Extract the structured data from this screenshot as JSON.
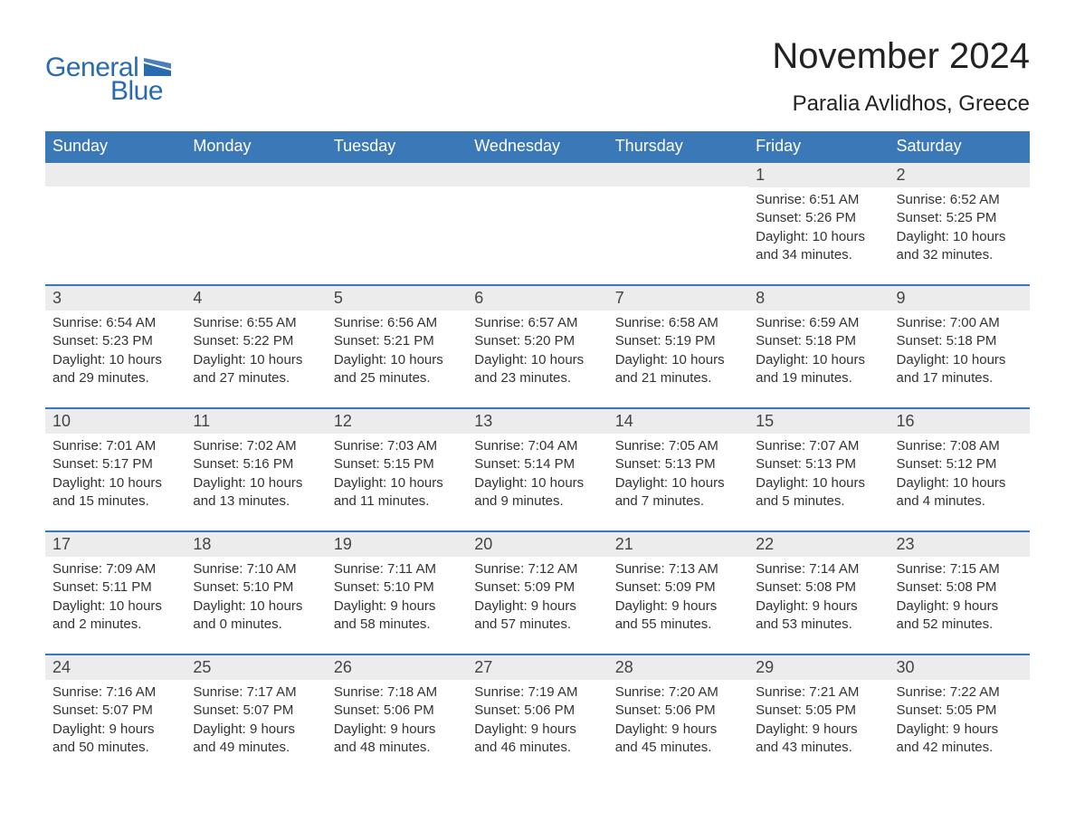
{
  "brand": {
    "word1": "General",
    "word2": "Blue",
    "color": "#2a6ab0",
    "flag_color": "#2a6ab0"
  },
  "title": {
    "month_year": "November 2024",
    "location": "Paralia Avlidhos, Greece"
  },
  "theme": {
    "header_bg": "#3b78b8",
    "header_fg": "#ffffff",
    "band_bg": "#ececec",
    "border_color": "#3b78b8",
    "text_color": "#333333",
    "page_bg": "#ffffff",
    "title_fontsize": 40,
    "location_fontsize": 24,
    "header_fontsize": 18,
    "daynum_fontsize": 18,
    "content_fontsize": 15
  },
  "calendar": {
    "day_headers": [
      "Sunday",
      "Monday",
      "Tuesday",
      "Wednesday",
      "Thursday",
      "Friday",
      "Saturday"
    ],
    "weeks": [
      [
        null,
        null,
        null,
        null,
        null,
        {
          "n": "1",
          "sunrise": "Sunrise: 6:51 AM",
          "sunset": "Sunset: 5:26 PM",
          "dl1": "Daylight: 10 hours",
          "dl2": "and 34 minutes."
        },
        {
          "n": "2",
          "sunrise": "Sunrise: 6:52 AM",
          "sunset": "Sunset: 5:25 PM",
          "dl1": "Daylight: 10 hours",
          "dl2": "and 32 minutes."
        }
      ],
      [
        {
          "n": "3",
          "sunrise": "Sunrise: 6:54 AM",
          "sunset": "Sunset: 5:23 PM",
          "dl1": "Daylight: 10 hours",
          "dl2": "and 29 minutes."
        },
        {
          "n": "4",
          "sunrise": "Sunrise: 6:55 AM",
          "sunset": "Sunset: 5:22 PM",
          "dl1": "Daylight: 10 hours",
          "dl2": "and 27 minutes."
        },
        {
          "n": "5",
          "sunrise": "Sunrise: 6:56 AM",
          "sunset": "Sunset: 5:21 PM",
          "dl1": "Daylight: 10 hours",
          "dl2": "and 25 minutes."
        },
        {
          "n": "6",
          "sunrise": "Sunrise: 6:57 AM",
          "sunset": "Sunset: 5:20 PM",
          "dl1": "Daylight: 10 hours",
          "dl2": "and 23 minutes."
        },
        {
          "n": "7",
          "sunrise": "Sunrise: 6:58 AM",
          "sunset": "Sunset: 5:19 PM",
          "dl1": "Daylight: 10 hours",
          "dl2": "and 21 minutes."
        },
        {
          "n": "8",
          "sunrise": "Sunrise: 6:59 AM",
          "sunset": "Sunset: 5:18 PM",
          "dl1": "Daylight: 10 hours",
          "dl2": "and 19 minutes."
        },
        {
          "n": "9",
          "sunrise": "Sunrise: 7:00 AM",
          "sunset": "Sunset: 5:18 PM",
          "dl1": "Daylight: 10 hours",
          "dl2": "and 17 minutes."
        }
      ],
      [
        {
          "n": "10",
          "sunrise": "Sunrise: 7:01 AM",
          "sunset": "Sunset: 5:17 PM",
          "dl1": "Daylight: 10 hours",
          "dl2": "and 15 minutes."
        },
        {
          "n": "11",
          "sunrise": "Sunrise: 7:02 AM",
          "sunset": "Sunset: 5:16 PM",
          "dl1": "Daylight: 10 hours",
          "dl2": "and 13 minutes."
        },
        {
          "n": "12",
          "sunrise": "Sunrise: 7:03 AM",
          "sunset": "Sunset: 5:15 PM",
          "dl1": "Daylight: 10 hours",
          "dl2": "and 11 minutes."
        },
        {
          "n": "13",
          "sunrise": "Sunrise: 7:04 AM",
          "sunset": "Sunset: 5:14 PM",
          "dl1": "Daylight: 10 hours",
          "dl2": "and 9 minutes."
        },
        {
          "n": "14",
          "sunrise": "Sunrise: 7:05 AM",
          "sunset": "Sunset: 5:13 PM",
          "dl1": "Daylight: 10 hours",
          "dl2": "and 7 minutes."
        },
        {
          "n": "15",
          "sunrise": "Sunrise: 7:07 AM",
          "sunset": "Sunset: 5:13 PM",
          "dl1": "Daylight: 10 hours",
          "dl2": "and 5 minutes."
        },
        {
          "n": "16",
          "sunrise": "Sunrise: 7:08 AM",
          "sunset": "Sunset: 5:12 PM",
          "dl1": "Daylight: 10 hours",
          "dl2": "and 4 minutes."
        }
      ],
      [
        {
          "n": "17",
          "sunrise": "Sunrise: 7:09 AM",
          "sunset": "Sunset: 5:11 PM",
          "dl1": "Daylight: 10 hours",
          "dl2": "and 2 minutes."
        },
        {
          "n": "18",
          "sunrise": "Sunrise: 7:10 AM",
          "sunset": "Sunset: 5:10 PM",
          "dl1": "Daylight: 10 hours",
          "dl2": "and 0 minutes."
        },
        {
          "n": "19",
          "sunrise": "Sunrise: 7:11 AM",
          "sunset": "Sunset: 5:10 PM",
          "dl1": "Daylight: 9 hours",
          "dl2": "and 58 minutes."
        },
        {
          "n": "20",
          "sunrise": "Sunrise: 7:12 AM",
          "sunset": "Sunset: 5:09 PM",
          "dl1": "Daylight: 9 hours",
          "dl2": "and 57 minutes."
        },
        {
          "n": "21",
          "sunrise": "Sunrise: 7:13 AM",
          "sunset": "Sunset: 5:09 PM",
          "dl1": "Daylight: 9 hours",
          "dl2": "and 55 minutes."
        },
        {
          "n": "22",
          "sunrise": "Sunrise: 7:14 AM",
          "sunset": "Sunset: 5:08 PM",
          "dl1": "Daylight: 9 hours",
          "dl2": "and 53 minutes."
        },
        {
          "n": "23",
          "sunrise": "Sunrise: 7:15 AM",
          "sunset": "Sunset: 5:08 PM",
          "dl1": "Daylight: 9 hours",
          "dl2": "and 52 minutes."
        }
      ],
      [
        {
          "n": "24",
          "sunrise": "Sunrise: 7:16 AM",
          "sunset": "Sunset: 5:07 PM",
          "dl1": "Daylight: 9 hours",
          "dl2": "and 50 minutes."
        },
        {
          "n": "25",
          "sunrise": "Sunrise: 7:17 AM",
          "sunset": "Sunset: 5:07 PM",
          "dl1": "Daylight: 9 hours",
          "dl2": "and 49 minutes."
        },
        {
          "n": "26",
          "sunrise": "Sunrise: 7:18 AM",
          "sunset": "Sunset: 5:06 PM",
          "dl1": "Daylight: 9 hours",
          "dl2": "and 48 minutes."
        },
        {
          "n": "27",
          "sunrise": "Sunrise: 7:19 AM",
          "sunset": "Sunset: 5:06 PM",
          "dl1": "Daylight: 9 hours",
          "dl2": "and 46 minutes."
        },
        {
          "n": "28",
          "sunrise": "Sunrise: 7:20 AM",
          "sunset": "Sunset: 5:06 PM",
          "dl1": "Daylight: 9 hours",
          "dl2": "and 45 minutes."
        },
        {
          "n": "29",
          "sunrise": "Sunrise: 7:21 AM",
          "sunset": "Sunset: 5:05 PM",
          "dl1": "Daylight: 9 hours",
          "dl2": "and 43 minutes."
        },
        {
          "n": "30",
          "sunrise": "Sunrise: 7:22 AM",
          "sunset": "Sunset: 5:05 PM",
          "dl1": "Daylight: 9 hours",
          "dl2": "and 42 minutes."
        }
      ]
    ]
  }
}
